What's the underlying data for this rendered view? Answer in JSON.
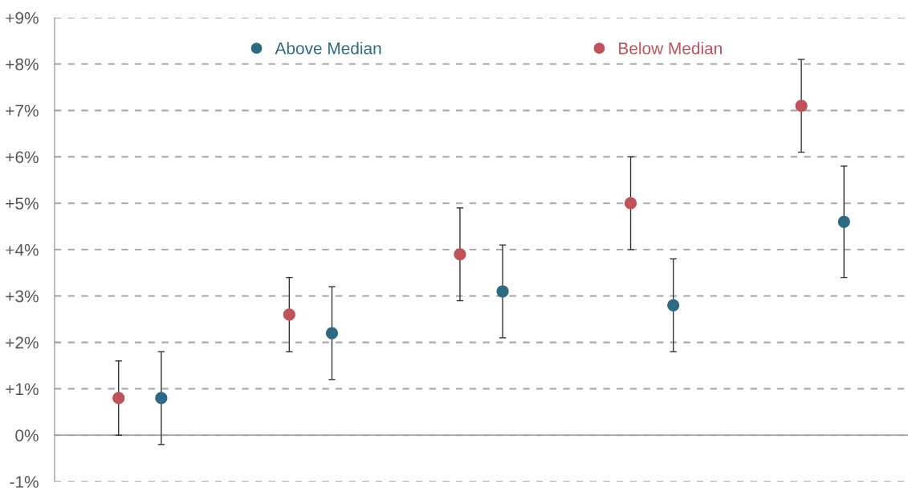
{
  "chart_data": {
    "type": "scatter",
    "categories": [
      null,
      null,
      null,
      null,
      null
    ],
    "series": [
      {
        "name": "Below Median",
        "color": "#c0525a",
        "values": [
          0.8,
          2.6,
          3.9,
          5.0,
          7.1
        ],
        "errors": [
          [
            0.0,
            1.6
          ],
          [
            1.8,
            3.4
          ],
          [
            2.9,
            4.9
          ],
          [
            4.0,
            6.0
          ],
          [
            6.1,
            8.1
          ]
        ]
      },
      {
        "name": "Above Median",
        "color": "#2c6b82",
        "values": [
          0.8,
          2.2,
          3.1,
          2.8,
          4.6
        ],
        "errors": [
          [
            -0.2,
            1.8
          ],
          [
            1.2,
            3.2
          ],
          [
            2.1,
            4.1
          ],
          [
            1.8,
            3.8
          ],
          [
            3.4,
            5.8
          ]
        ]
      }
    ],
    "ylim": [
      -1,
      9
    ],
    "yticks": [
      {
        "value": -1,
        "label": "-1%"
      },
      {
        "value": 0,
        "label": "0%"
      },
      {
        "value": 1,
        "label": "+1%"
      },
      {
        "value": 2,
        "label": "+2%"
      },
      {
        "value": 3,
        "label": "+3%"
      },
      {
        "value": 4,
        "label": "+4%"
      },
      {
        "value": 5,
        "label": "+5%"
      },
      {
        "value": 6,
        "label": "+6%"
      },
      {
        "value": 7,
        "label": "+7%"
      },
      {
        "value": 8,
        "label": "+8%"
      },
      {
        "value": 9,
        "label": "+9%"
      }
    ],
    "grid": "y",
    "legend": "top",
    "marker": "circle",
    "ref_lines": [
      {
        "axis": "y",
        "value": 0,
        "color": "#a6a6a6",
        "line_style": "solid"
      }
    ]
  }
}
